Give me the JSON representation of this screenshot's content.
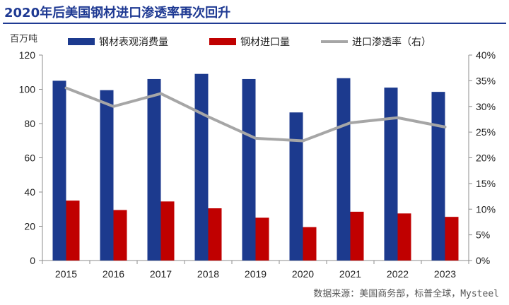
{
  "header": {
    "title": "2020年后美国钢材进口渗透率再次回升",
    "unit": "百万吨"
  },
  "footer": {
    "source": "数据来源：美国商务部，标普全球，Mysteel"
  },
  "chart_data": {
    "type": "bar",
    "categories": [
      "2015",
      "2016",
      "2017",
      "2018",
      "2019",
      "2020",
      "2021",
      "2022",
      "2023"
    ],
    "series": [
      {
        "name": "钢材表观消费量",
        "kind": "bar",
        "axis": "left",
        "color": "#1c3a8e",
        "values": [
          105,
          99.5,
          106,
          109,
          106,
          86.5,
          106.5,
          101,
          98.5
        ]
      },
      {
        "name": "钢材进口量",
        "kind": "bar",
        "axis": "left",
        "color": "#c00000",
        "values": [
          35,
          29.5,
          34.5,
          30.5,
          25,
          19.5,
          28.5,
          27.5,
          25.5
        ]
      },
      {
        "name": "进口渗透率（右）",
        "kind": "line",
        "axis": "right",
        "color": "#a6a6a6",
        "values": [
          33.6,
          30.0,
          32.5,
          28.0,
          23.8,
          23.3,
          26.8,
          27.8,
          26.0
        ]
      }
    ],
    "y_left": {
      "min": 0,
      "max": 120,
      "step": 20,
      "ticks": [
        "0",
        "20",
        "40",
        "60",
        "80",
        "100",
        "120"
      ]
    },
    "y_right": {
      "min": 0,
      "max": 40,
      "step": 5,
      "ticks": [
        "0%",
        "5%",
        "10%",
        "15%",
        "20%",
        "25%",
        "30%",
        "35%",
        "40%"
      ]
    },
    "legend_position": "top",
    "grid": false
  }
}
